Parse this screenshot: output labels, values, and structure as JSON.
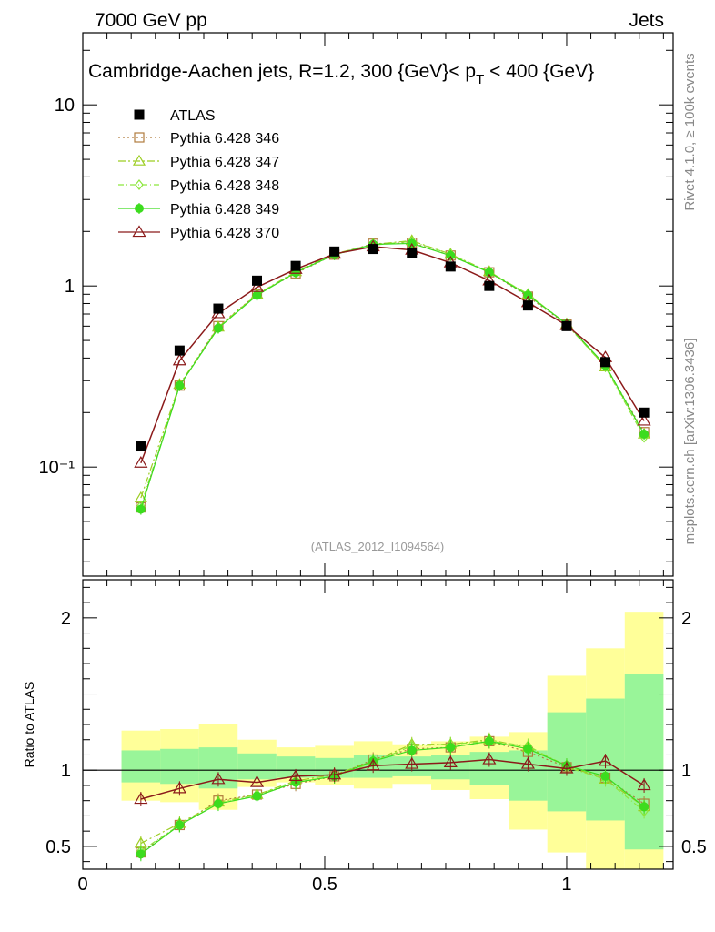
{
  "header": {
    "left": "7000 GeV pp",
    "right": "Jets"
  },
  "side": {
    "rivet": "Rivet 4.1.0, ≥ 100k events",
    "mcplots": "mcplots.cern.ch [arXiv:1306.3436]"
  },
  "chart_data": {
    "type": "line",
    "title": "Cambridge-Aachen jets, R=1.2,  300 {GeV}< p_T < 400 {GeV}",
    "watermark": "(ATLAS_2012_I1094564)",
    "x": [
      0.12,
      0.2,
      0.28,
      0.36,
      0.44,
      0.52,
      0.6,
      0.68,
      0.76,
      0.84,
      0.92,
      1.0,
      1.08,
      1.16
    ],
    "xlim": [
      0,
      1.22
    ],
    "xticks": [
      {
        "v": 0,
        "label": "0"
      },
      {
        "v": 0.5,
        "label": "0.5"
      },
      {
        "v": 1,
        "label": "1"
      }
    ],
    "main": {
      "yscale": "log",
      "ylim": [
        0.025,
        25
      ],
      "yticks": [
        {
          "v": 10,
          "label": "10"
        },
        {
          "v": 1,
          "label": "1"
        },
        {
          "v": 0.1,
          "label": "10⁻¹"
        }
      ]
    },
    "ratio": {
      "ylabel": "Ratio to ATLAS",
      "ylim": [
        0.35,
        2.25
      ],
      "yticks": [
        {
          "v": 2,
          "label": "2"
        },
        {
          "v": 1,
          "label": "1"
        },
        {
          "v": 0.5,
          "label": "0.5"
        }
      ],
      "bands_edges": [
        0.08,
        0.16,
        0.24,
        0.32,
        0.4,
        0.48,
        0.56,
        0.64,
        0.72,
        0.8,
        0.88,
        0.96,
        1.04,
        1.12,
        1.2
      ],
      "band_yellow": [
        [
          0.8,
          1.26
        ],
        [
          0.79,
          1.27
        ],
        [
          0.74,
          1.3
        ],
        [
          0.89,
          1.2
        ],
        [
          0.92,
          1.15
        ],
        [
          0.9,
          1.16
        ],
        [
          0.88,
          1.19
        ],
        [
          0.91,
          1.17
        ],
        [
          0.87,
          1.19
        ],
        [
          0.81,
          1.22
        ],
        [
          0.61,
          1.25
        ],
        [
          0.46,
          1.62
        ],
        [
          0.33,
          1.8
        ],
        [
          0.2,
          2.04
        ]
      ],
      "band_green": [
        [
          0.92,
          1.13
        ],
        [
          0.91,
          1.14
        ],
        [
          0.88,
          1.15
        ],
        [
          0.94,
          1.11
        ],
        [
          0.95,
          1.09
        ],
        [
          0.95,
          1.08
        ],
        [
          0.95,
          1.1
        ],
        [
          0.96,
          1.09
        ],
        [
          0.94,
          1.1
        ],
        [
          0.9,
          1.12
        ],
        [
          0.8,
          1.13
        ],
        [
          0.73,
          1.38
        ],
        [
          0.67,
          1.47
        ],
        [
          0.48,
          1.63
        ]
      ]
    },
    "atlas": {
      "name": "ATLAS",
      "values": [
        0.13,
        0.44,
        0.75,
        1.07,
        1.29,
        1.55,
        1.6,
        1.52,
        1.28,
        1.0,
        0.78,
        0.6,
        0.38,
        0.2
      ]
    },
    "series": [
      {
        "name": "Pythia 6.428 346",
        "color": "#b07c3e",
        "marker": "square",
        "dash": "2,3",
        "ratio": [
          0.46,
          0.64,
          0.8,
          0.84,
          0.91,
          0.96,
          1.07,
          1.14,
          1.15,
          1.19,
          1.12,
          1.02,
          0.95,
          0.78
        ]
      },
      {
        "name": "Pythia 6.428 347",
        "color": "#9ccd22",
        "marker": "triangle",
        "dash": "8,3,2,3",
        "ratio": [
          0.52,
          0.65,
          0.79,
          0.84,
          0.93,
          0.97,
          1.06,
          1.17,
          1.17,
          1.2,
          1.15,
          1.03,
          0.94,
          0.76
        ]
      },
      {
        "name": "Pythia 6.428 348",
        "color": "#8ce63c",
        "marker": "diamond",
        "dash": "6,3,1,3",
        "ratio": [
          0.47,
          0.64,
          0.78,
          0.84,
          0.92,
          0.96,
          1.05,
          1.16,
          1.17,
          1.19,
          1.16,
          1.02,
          0.94,
          0.73
        ]
      },
      {
        "name": "Pythia 6.428 349",
        "color": "#3cdc1e",
        "marker": "circle-plus",
        "dash": "",
        "ratio": [
          0.45,
          0.64,
          0.78,
          0.83,
          0.92,
          0.96,
          1.06,
          1.13,
          1.15,
          1.19,
          1.14,
          1.03,
          0.96,
          0.76
        ]
      },
      {
        "name": "Pythia 6.428 370",
        "color": "#8b1a1a",
        "marker": "open-triangle",
        "dash": "",
        "ratio": [
          0.81,
          0.88,
          0.94,
          0.92,
          0.96,
          0.97,
          1.03,
          1.04,
          1.05,
          1.07,
          1.04,
          1.01,
          1.06,
          0.9
        ]
      }
    ]
  }
}
